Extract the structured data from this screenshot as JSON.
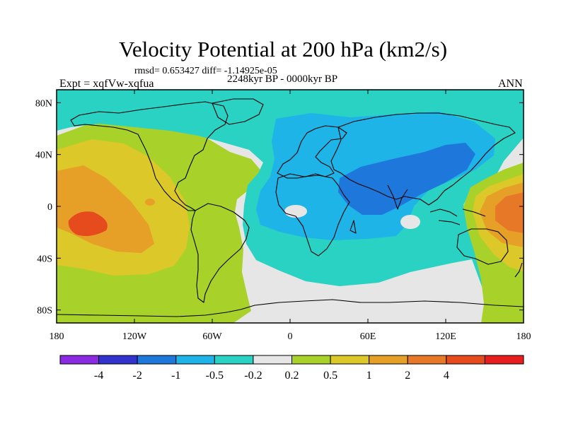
{
  "title": "Velocity Potential at 200 hPa (km2/s)",
  "stats_line": "rmsd= 0.653427 diff= -1.14925e-05",
  "experiment": "Expt = xqfVw-xqfua",
  "period": "2248kyr BP - 0000kyr BP",
  "season": "ANN",
  "lat_ticks": [
    {
      "value": 80,
      "label": "80N"
    },
    {
      "value": 40,
      "label": "40N"
    },
    {
      "value": 0,
      "label": "0"
    },
    {
      "value": -40,
      "label": "40S"
    },
    {
      "value": -80,
      "label": "80S"
    }
  ],
  "lon_ticks": [
    {
      "value": -180,
      "label": "180"
    },
    {
      "value": -120,
      "label": "120W"
    },
    {
      "value": -60,
      "label": "60W"
    },
    {
      "value": 0,
      "label": "0"
    },
    {
      "value": 60,
      "label": "60E"
    },
    {
      "value": 120,
      "label": "120E"
    },
    {
      "value": 180,
      "label": "180"
    }
  ],
  "colorbar": {
    "colors": [
      "#8a2be2",
      "#3232cd",
      "#1e78dc",
      "#1eb4e8",
      "#2ad2c4",
      "#e6e6e6",
      "#a8d22a",
      "#dcc828",
      "#e6a028",
      "#e67828",
      "#e64b1e",
      "#e61e1e"
    ],
    "labels": [
      "-4",
      "-2",
      "-1",
      "-0.5",
      "-0.2",
      "0.2",
      "0.5",
      "1",
      "2",
      "4"
    ]
  },
  "colors": {
    "neutral": "#e6e6e6",
    "pos_1": "#a8d22a",
    "pos_2": "#dcc828",
    "pos_3": "#e6a028",
    "pos_4": "#e67828",
    "pos_5": "#e64b1e",
    "neg_1": "#2ad2c4",
    "neg_2": "#1eb4e8",
    "neg_3": "#1e78dc"
  }
}
